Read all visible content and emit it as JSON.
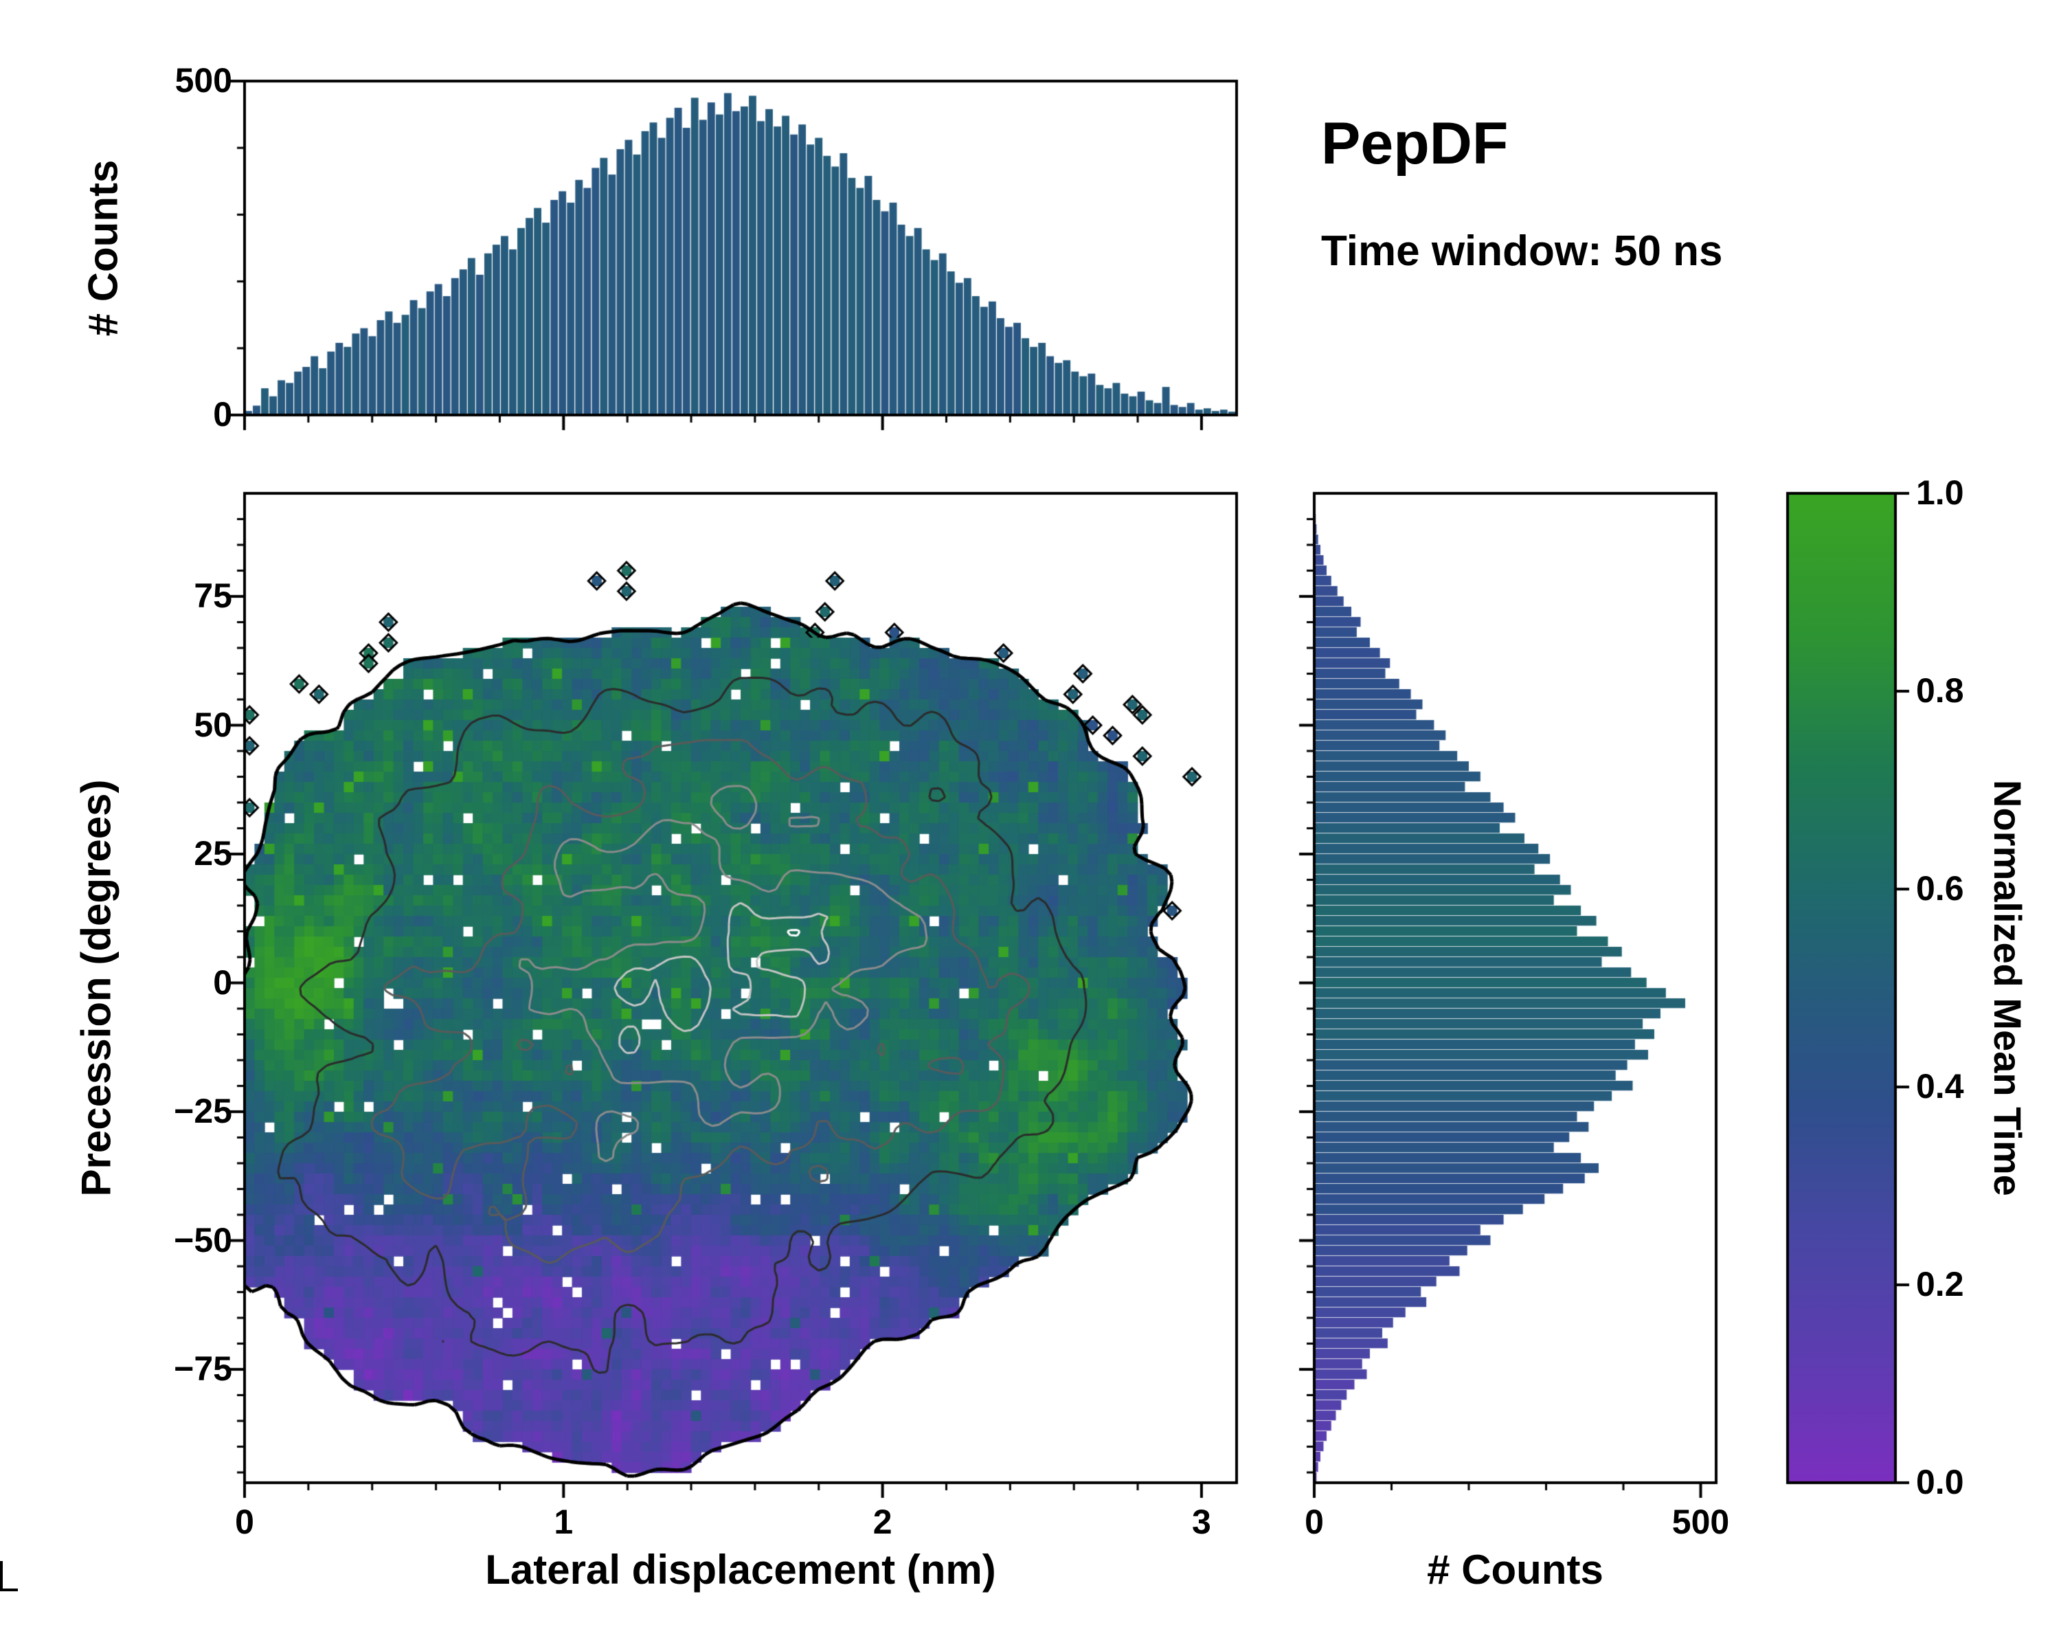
{
  "title": "PepDF",
  "subtitle": "Time window: 50 ns",
  "colors": {
    "frame": "#000000",
    "background": "#ffffff",
    "colormap": [
      [
        0.0,
        "#7b2fbf"
      ],
      [
        0.12,
        "#5f3cb2"
      ],
      [
        0.25,
        "#4847a4"
      ],
      [
        0.38,
        "#2f4f8c"
      ],
      [
        0.5,
        "#265c7c"
      ],
      [
        0.6,
        "#1f6a6b"
      ],
      [
        0.72,
        "#1f7a52"
      ],
      [
        0.85,
        "#2d9334"
      ],
      [
        1.0,
        "#3aa524"
      ]
    ]
  },
  "axes": {
    "top_hist": {
      "ylabel": "# Counts",
      "yticks": [
        0,
        500
      ],
      "ylim": [
        0,
        500
      ]
    },
    "main": {
      "xlabel": "Lateral displacement (nm)",
      "ylabel": "Precession (degrees)",
      "xticks": [
        0,
        1,
        2,
        3
      ],
      "yticks": [
        75,
        50,
        25,
        0,
        -25,
        -50,
        -75
      ],
      "xlim": [
        0,
        3.11
      ],
      "ylim": [
        -97,
        95
      ]
    },
    "right_hist": {
      "xlabel": "# Counts",
      "xticks": [
        0,
        500
      ],
      "xlim": [
        0,
        520
      ]
    },
    "colorbar": {
      "label": "Normalized Mean Time",
      "ticks": [
        1.0,
        0.8,
        0.6,
        0.4,
        0.2,
        0.0
      ],
      "lim": [
        0,
        1
      ]
    }
  },
  "chart_data": [
    {
      "name": "lateral_displacement_histogram",
      "type": "bar",
      "x_range": [
        0,
        3.11
      ],
      "y_range": [
        0,
        500
      ],
      "bar_color_value": 0.48,
      "counts": [
        6,
        14,
        40,
        28,
        52,
        48,
        65,
        72,
        88,
        70,
        95,
        108,
        102,
        122,
        130,
        118,
        142,
        155,
        138,
        150,
        172,
        160,
        185,
        196,
        178,
        205,
        218,
        235,
        210,
        242,
        255,
        268,
        248,
        280,
        295,
        310,
        288,
        322,
        335,
        318,
        352,
        340,
        370,
        385,
        360,
        398,
        412,
        390,
        425,
        438,
        415,
        445,
        460,
        430,
        475,
        442,
        468,
        450,
        482,
        455,
        462,
        478,
        440,
        458,
        432,
        448,
        420,
        435,
        405,
        415,
        388,
        372,
        392,
        355,
        340,
        358,
        322,
        305,
        318,
        285,
        268,
        280,
        248,
        232,
        242,
        215,
        198,
        205,
        178,
        162,
        170,
        145,
        132,
        138,
        115,
        102,
        108,
        88,
        78,
        82,
        65,
        58,
        62,
        45,
        40,
        48,
        32,
        28,
        35,
        22,
        18,
        42,
        15,
        12,
        18,
        8,
        10,
        6,
        8,
        5
      ]
    },
    {
      "name": "joint_distribution_heatmap",
      "type": "heatmap",
      "x_range": [
        0,
        3.11
      ],
      "y_range": [
        -97,
        95
      ],
      "grid": [
        100,
        96
      ],
      "seed": 42,
      "mask_threshold": 0.12,
      "density_components": [
        {
          "x": 1.35,
          "y": 15,
          "sx": 0.6,
          "sy": 30,
          "w": 1.0
        },
        {
          "x": 1.05,
          "y": -20,
          "sx": 0.7,
          "sy": 26,
          "w": 0.85
        },
        {
          "x": 1.85,
          "y": 5,
          "sx": 0.55,
          "sy": 33,
          "w": 0.75
        },
        {
          "x": 0.75,
          "y": 35,
          "sx": 0.45,
          "sy": 20,
          "w": 0.5
        },
        {
          "x": 1.25,
          "y": -52,
          "sx": 0.6,
          "sy": 18,
          "w": 0.55
        },
        {
          "x": 2.35,
          "y": -8,
          "sx": 0.42,
          "sy": 26,
          "w": 0.5
        },
        {
          "x": 0.45,
          "y": -35,
          "sx": 0.35,
          "sy": 25,
          "w": 0.45
        },
        {
          "x": 1.15,
          "y": -78,
          "sx": 0.45,
          "sy": 16,
          "w": 0.45
        },
        {
          "x": 2.0,
          "y": 45,
          "sx": 0.5,
          "sy": 12,
          "w": 0.3
        }
      ],
      "value_base": 0.46,
      "value_features": [
        {
          "x": 1.3,
          "y": 20,
          "sx": 0.9,
          "sy": 40,
          "amp": 0.22
        },
        {
          "x": 0.18,
          "y": 0,
          "sx": 0.14,
          "sy": 16,
          "amp": 0.38
        },
        {
          "x": 2.6,
          "y": -18,
          "sx": 0.18,
          "sy": 14,
          "amp": 0.3
        },
        {
          "x": 2.35,
          "y": -45,
          "sx": 0.3,
          "sy": 14,
          "amp": 0.28
        },
        {
          "x": 0.5,
          "y": 55,
          "sx": 0.3,
          "sy": 14,
          "amp": 0.12
        },
        {
          "ramp": true,
          "y0": -28,
          "y1": -58,
          "amp": -0.3
        }
      ],
      "value_noise": 0.26,
      "contour_levels": [
        0.12,
        0.3,
        0.5,
        0.68,
        0.84,
        0.95
      ],
      "contour_colors": [
        "#000000",
        "#2b2b2b",
        "#5a5a5a",
        "#8c8c8c",
        "#c4c4c4",
        "#ffffff"
      ]
    },
    {
      "name": "precession_histogram",
      "type": "bar_horizontal",
      "x_range": [
        0,
        520
      ],
      "y_range": [
        -97,
        95
      ],
      "value_profile": [
        [
          95,
          0.3
        ],
        [
          55,
          0.4
        ],
        [
          30,
          0.5
        ],
        [
          12,
          0.58
        ],
        [
          0,
          0.56
        ],
        [
          -12,
          0.52
        ],
        [
          -25,
          0.46
        ],
        [
          -38,
          0.4
        ],
        [
          -50,
          0.34
        ],
        [
          -65,
          0.27
        ],
        [
          -80,
          0.2
        ],
        [
          -97,
          0.12
        ]
      ],
      "counts": [
        0,
        0,
        2,
        3,
        5,
        8,
        12,
        16,
        22,
        30,
        38,
        48,
        60,
        55,
        72,
        85,
        98,
        92,
        110,
        125,
        140,
        132,
        155,
        170,
        162,
        185,
        200,
        215,
        195,
        228,
        245,
        260,
        240,
        272,
        290,
        305,
        285,
        318,
        332,
        310,
        345,
        365,
        340,
        380,
        398,
        372,
        410,
        430,
        455,
        480,
        448,
        425,
        440,
        415,
        432,
        405,
        390,
        412,
        385,
        362,
        340,
        355,
        330,
        310,
        345,
        368,
        350,
        322,
        298,
        270,
        245,
        215,
        228,
        198,
        175,
        188,
        158,
        138,
        145,
        118,
        102,
        88,
        95,
        72,
        62,
        68,
        52,
        42,
        35,
        28,
        22,
        16,
        12,
        8,
        5,
        3
      ]
    }
  ]
}
